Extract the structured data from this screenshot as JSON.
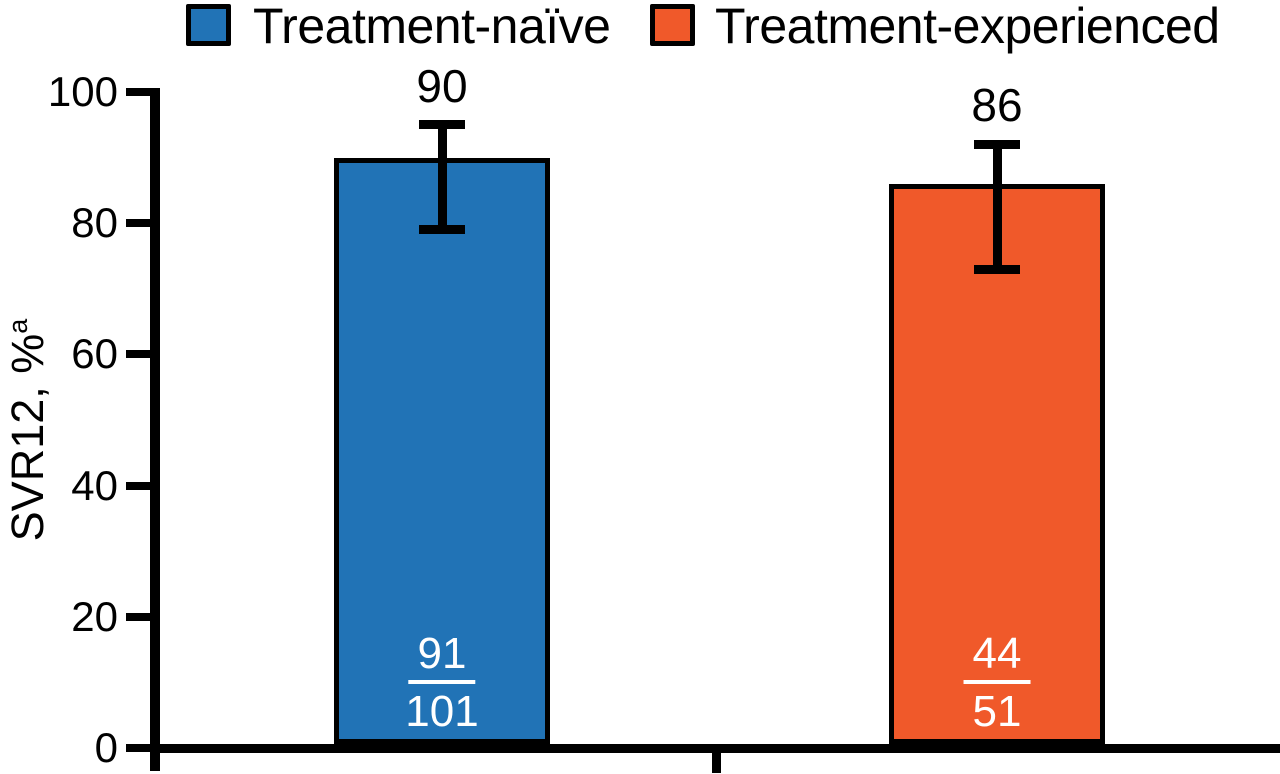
{
  "figure": {
    "background": "#FFFFFF"
  },
  "legend": {
    "position": "top",
    "items": [
      {
        "label": "Treatment-naïve",
        "color": "#2173B6"
      },
      {
        "label": "Treatment-experienced",
        "color": "#F0592A"
      }
    ]
  },
  "y_axis": {
    "label": "SVR12, %",
    "label_superscript": "a",
    "tick_labels": [
      "0",
      "20",
      "40",
      "60",
      "80",
      "100"
    ]
  },
  "chart_data": {
    "type": "bar",
    "title": "",
    "xlabel": "",
    "ylabel": "SVR12, %a",
    "ylim": [
      0,
      100
    ],
    "yticks": [
      0,
      20,
      40,
      60,
      80,
      100
    ],
    "grid": false,
    "legend_position": "top",
    "error_bars": true,
    "categories": [
      "Treatment-naïve",
      "Treatment-experienced"
    ],
    "series": [
      {
        "name": "Treatment-naïve",
        "value": 90,
        "value_label": "90",
        "fraction_numerator": "91",
        "fraction_denominator": "101",
        "error_low": 79,
        "error_high": 95,
        "color": "#2173B6"
      },
      {
        "name": "Treatment-experienced",
        "value": 86,
        "value_label": "86",
        "fraction_numerator": "44",
        "fraction_denominator": "51",
        "error_low": 73,
        "error_high": 92,
        "color": "#F0592A"
      }
    ]
  }
}
